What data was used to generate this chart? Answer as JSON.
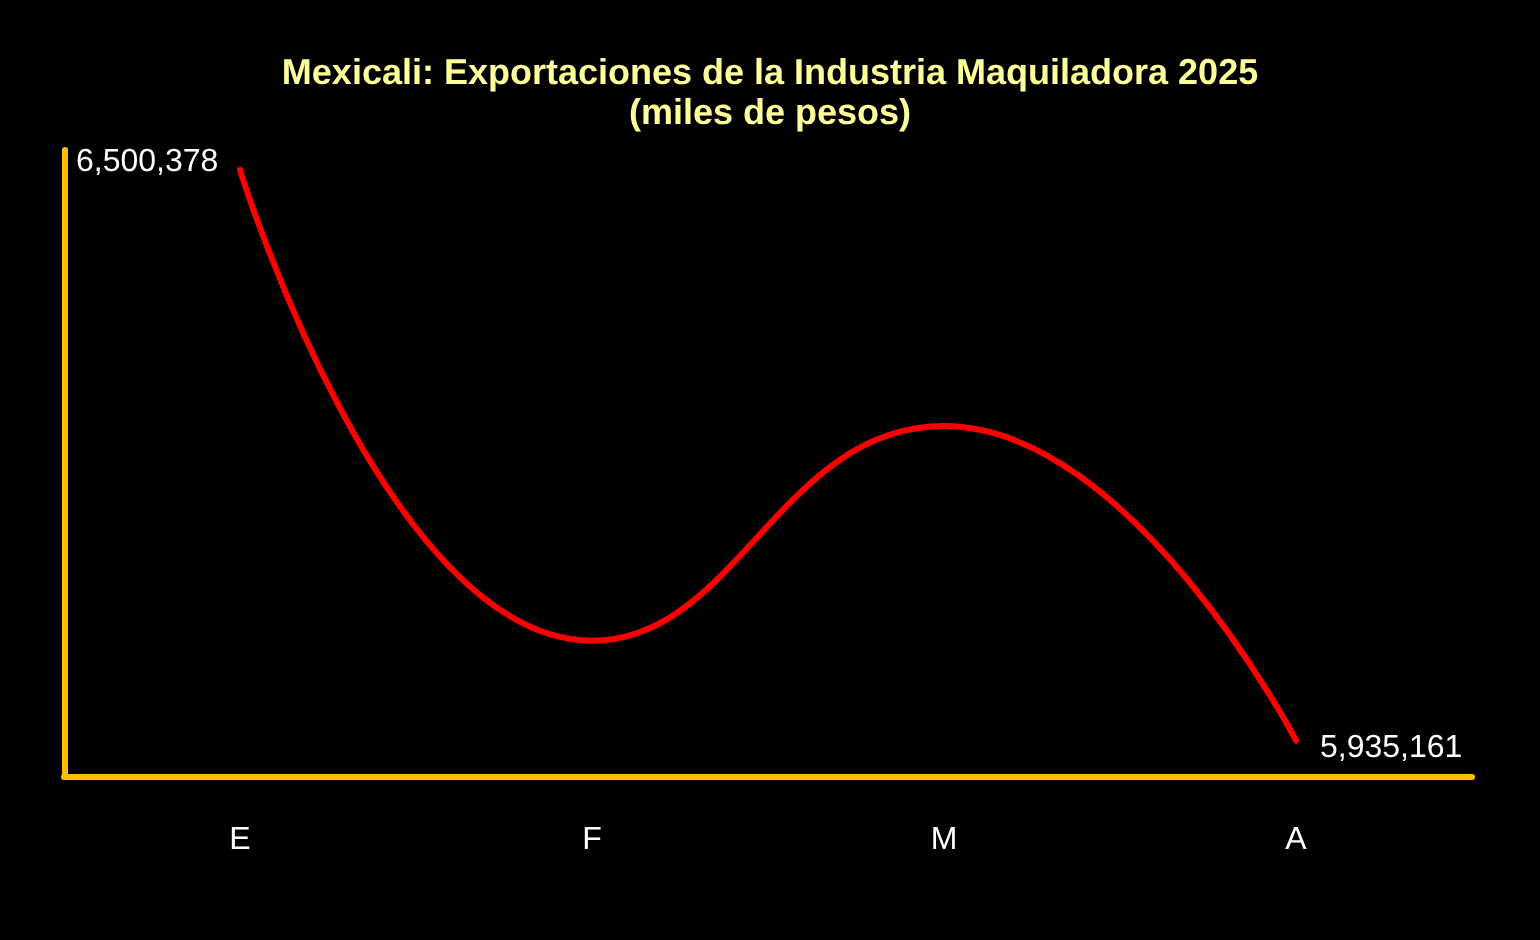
{
  "chart_data": {
    "type": "line",
    "title": "Mexicali: Exportaciones de la Industria Maquiladora 2025",
    "subtitle": "(miles de pesos)",
    "categories": [
      "E",
      "F",
      "M",
      "A"
    ],
    "series": [
      {
        "color": "#ff0000",
        "values": [
          6500378,
          6034000,
          6246600,
          5935161
        ],
        "value_labels": [
          "6,500,378",
          null,
          null,
          "5,935,161"
        ]
      }
    ],
    "ylim": [
      5900000,
      6520000
    ],
    "tick_labels": "x",
    "grid": false,
    "marker": "none",
    "line_style": "solid"
  }
}
